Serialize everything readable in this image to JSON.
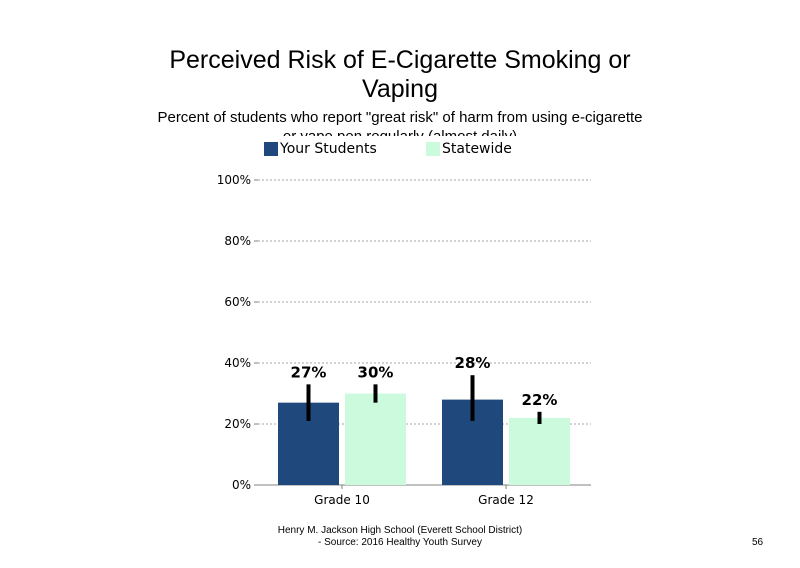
{
  "slide": {
    "title_line1": "Perceived Risk of E-Cigarette Smoking or",
    "title_line2": "Vaping",
    "subtitle": "Percent of students who report \"great risk\" of harm from using e-cigarette or vape pen regularly (almost daily)",
    "footer_line1": "Henry M. Jackson High School (Everett School District)",
    "footer_line2": "- Source: 2016 Healthy Youth Survey",
    "page_number": "56"
  },
  "chart_data": {
    "type": "bar",
    "title": "Perceived Risk of E-Cigarette Smoking or Vaping",
    "subtitle": "Percent of students who report \"great risk\" of harm from using e-cigarette or vape pen regularly (almost daily)",
    "categories": [
      "Grade 10",
      "Grade 12"
    ],
    "series": [
      {
        "name": "Your Students",
        "color": "#1f497d",
        "values": [
          27,
          28
        ],
        "labels": [
          "27%",
          "28%"
        ],
        "ci_low": [
          21,
          21
        ],
        "ci_high": [
          33,
          36
        ]
      },
      {
        "name": "Statewide",
        "color": "#ccfadc",
        "values": [
          30,
          22
        ],
        "labels": [
          "30%",
          "22%"
        ],
        "ci_low": [
          27,
          20
        ],
        "ci_high": [
          33,
          24
        ]
      }
    ],
    "y_ticks": [
      "0%",
      "20%",
      "40%",
      "60%",
      "80%",
      "100%"
    ],
    "y_tick_values": [
      0,
      20,
      40,
      60,
      80,
      100
    ],
    "ylim": [
      0,
      100
    ],
    "grid": true,
    "legend_position": "top"
  }
}
